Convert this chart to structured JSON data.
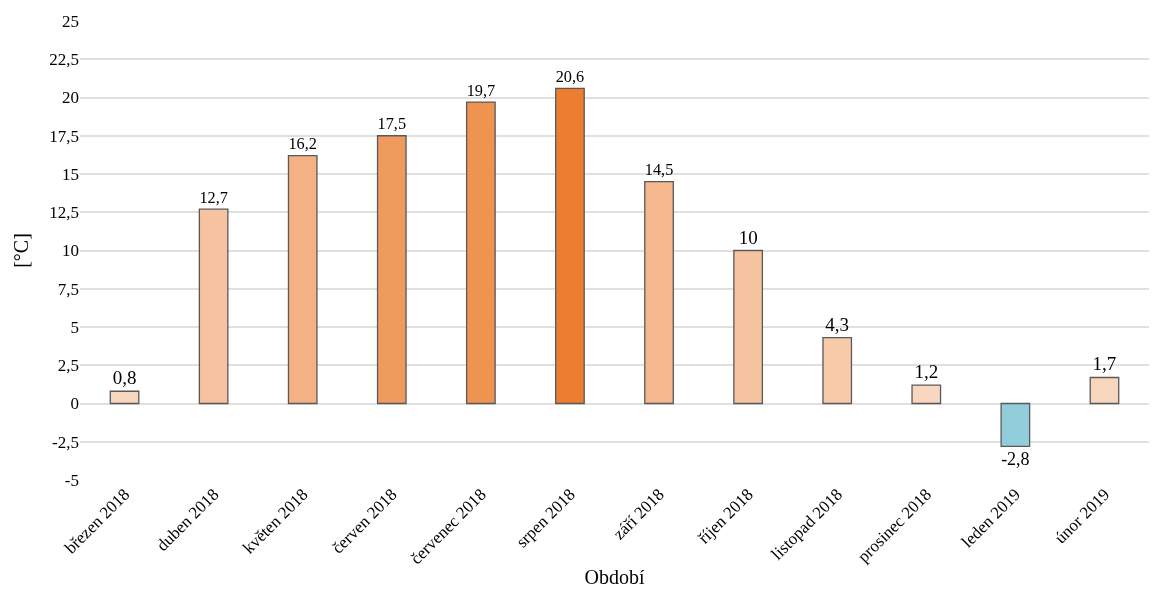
{
  "chart_data": {
    "type": "bar",
    "xlabel": "Období",
    "ylabel": "[°C]",
    "categories": [
      "březen 2018",
      "duben 2018",
      "květen 2018",
      "červen 2018",
      "červenec 2018",
      "srpen 2018",
      "září 2018",
      "říjen 2018",
      "listopad 2018",
      "prosinec 2018",
      "leden 2019",
      "únor 2019"
    ],
    "values": [
      0.8,
      12.7,
      16.2,
      17.5,
      19.7,
      20.6,
      14.5,
      10,
      4.3,
      1.2,
      -2.8,
      1.7
    ],
    "value_labels": [
      "0,8",
      "12,7",
      "16,2",
      "17,5",
      "19,7",
      "20,6",
      "14,5",
      "10",
      "4,3",
      "1,2",
      "-2,8",
      "1,7"
    ],
    "colors": [
      "#f8d5be",
      "#f6c29f",
      "#f4b183",
      "#ef9b5d",
      "#ef9450",
      "#ed7d31",
      "#f5b88f",
      "#f6c4a0",
      "#f7caa9",
      "#f8d6bf",
      "#92cddc",
      "#f8d5bd"
    ],
    "ylim": [
      -5,
      25
    ],
    "yticks": [
      -5,
      {
        "value": -2.5,
        "label": "-2,5"
      },
      0,
      {
        "value": 2.5,
        "label": "2,5"
      },
      5,
      {
        "value": 7.5,
        "label": "7,5"
      },
      10,
      {
        "value": 12.5,
        "label": "12,5"
      },
      15,
      {
        "value": 17.5,
        "label": "17,5"
      },
      20,
      {
        "value": 22.5,
        "label": "22,5"
      },
      25
    ],
    "grid": "y",
    "legend": false
  }
}
